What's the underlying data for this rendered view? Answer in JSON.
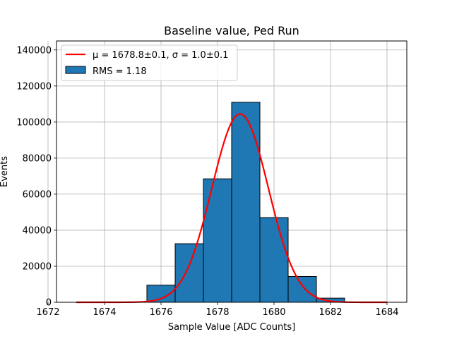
{
  "chart_data": {
    "type": "bar",
    "title": "Baseline value, Ped Run",
    "xlabel": "Sample Value [ADC Counts]",
    "ylabel": "Events",
    "xlim": [
      1672.3,
      1684.7
    ],
    "ylim": [
      0,
      145000
    ],
    "xticks": [
      1672,
      1674,
      1676,
      1678,
      1680,
      1682,
      1684
    ],
    "yticks": [
      0,
      20000,
      40000,
      60000,
      80000,
      100000,
      120000,
      140000
    ],
    "grid": true,
    "legend_position": "top-left",
    "bins": [
      {
        "left": 1675.5,
        "right": 1676.5,
        "value": 9500
      },
      {
        "left": 1676.5,
        "right": 1677.5,
        "value": 32500
      },
      {
        "left": 1677.5,
        "right": 1678.5,
        "value": 68500
      },
      {
        "left": 1678.5,
        "right": 1679.5,
        "value": 111000
      },
      {
        "left": 1679.5,
        "right": 1680.5,
        "value": 47000
      },
      {
        "left": 1680.5,
        "right": 1681.5,
        "value": 14300
      },
      {
        "left": 1681.5,
        "right": 1682.5,
        "value": 2300
      }
    ],
    "fit": {
      "mu": 1678.8,
      "sigma": 1.0,
      "amplitude": 104500,
      "x_range": [
        1673,
        1684
      ]
    },
    "legend": [
      {
        "label": "μ = 1678.8±0.1, σ = 1.0±0.1",
        "kind": "line",
        "color": "#ff0000"
      },
      {
        "label": "RMS = 1.18",
        "kind": "patch",
        "color": "#1f77b4"
      }
    ],
    "colors": {
      "bar": "#1f77b4",
      "bar_edge": "#000000",
      "fit_line": "#ff0000",
      "grid": "#b0b0b0"
    }
  }
}
